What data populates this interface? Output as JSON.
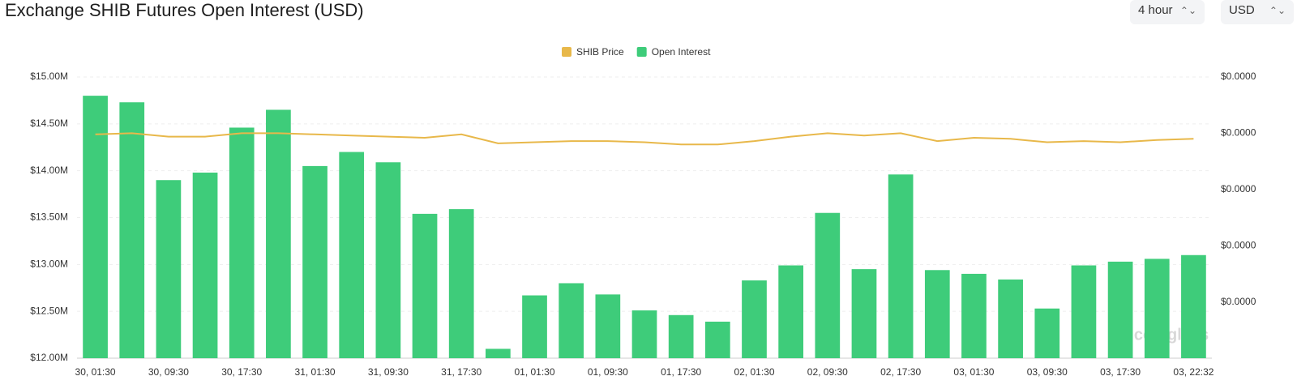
{
  "chart_data": {
    "type": "bar",
    "title": "Exchange SHIB Futures Open Interest (USD)",
    "controls": {
      "interval": "4 hour",
      "currency": "USD"
    },
    "watermark": "coinglass",
    "categories": [
      "30, 01:30",
      null,
      "30, 09:30",
      null,
      "30, 17:30",
      null,
      "31, 01:30",
      null,
      "31, 09:30",
      null,
      "31, 17:30",
      null,
      "01, 01:30",
      null,
      "01, 09:30",
      null,
      "01, 17:30",
      null,
      "02, 01:30",
      null,
      "02, 09:30",
      null,
      "02, 17:30",
      null,
      "03, 01:30",
      null,
      "03, 09:30",
      null,
      "03, 17:30",
      null,
      "03, 22:32"
    ],
    "series": [
      {
        "name": "SHIB Price",
        "type": "line",
        "axis": "y2",
        "color": "#e8b84a",
        "values": [
          1.349e-05,
          1.35e-05,
          1.347e-05,
          1.347e-05,
          1.35e-05,
          1.35e-05,
          1.349e-05,
          1.348e-05,
          1.347e-05,
          1.346e-05,
          1.349e-05,
          1.341e-05,
          1.342e-05,
          1.343e-05,
          1.343e-05,
          1.342e-05,
          1.34e-05,
          1.34e-05,
          1.343e-05,
          1.347e-05,
          1.35e-05,
          1.348e-05,
          1.35e-05,
          1.343e-05,
          1.346e-05,
          1.345e-05,
          1.342e-05,
          1.343e-05,
          1.342e-05,
          1.344e-05,
          1.345e-05
        ]
      },
      {
        "name": "Open Interest",
        "type": "bar",
        "color": "#3ecc7a",
        "values": [
          14800000,
          14730000,
          13900000,
          13980000,
          14460000,
          14650000,
          14050000,
          14200000,
          14090000,
          13540000,
          13590000,
          12100000,
          12670000,
          12800000,
          12680000,
          12510000,
          12460000,
          12390000,
          12830000,
          12990000,
          13550000,
          12950000,
          13960000,
          12940000,
          12900000,
          12840000,
          12530000,
          12990000,
          13030000,
          13060000,
          13100000
        ]
      }
    ],
    "ylim": [
      12000000,
      15000000
    ],
    "yticks": [
      {
        "value": 12000000,
        "label": "$12.00M"
      },
      {
        "value": 12500000,
        "label": "$12.50M"
      },
      {
        "value": 13000000,
        "label": "$13.00M"
      },
      {
        "value": 13500000,
        "label": "$13.50M"
      },
      {
        "value": 14000000,
        "label": "$14.00M"
      },
      {
        "value": 14500000,
        "label": "$14.50M"
      },
      {
        "value": 15000000,
        "label": "$15.00M"
      }
    ],
    "y2lim": [
      1.15e-05,
      1.4e-05
    ],
    "y2ticks": [
      {
        "value": 1.2e-05,
        "label": "$0.0000"
      },
      {
        "value": 1.25e-05,
        "label": "$0.0000"
      },
      {
        "value": 1.3e-05,
        "label": "$0.0000"
      },
      {
        "value": 1.35e-05,
        "label": "$0.0000"
      },
      {
        "value": 1.4e-05,
        "label": "$0.0000"
      }
    ],
    "grid": true,
    "legend": "top"
  }
}
